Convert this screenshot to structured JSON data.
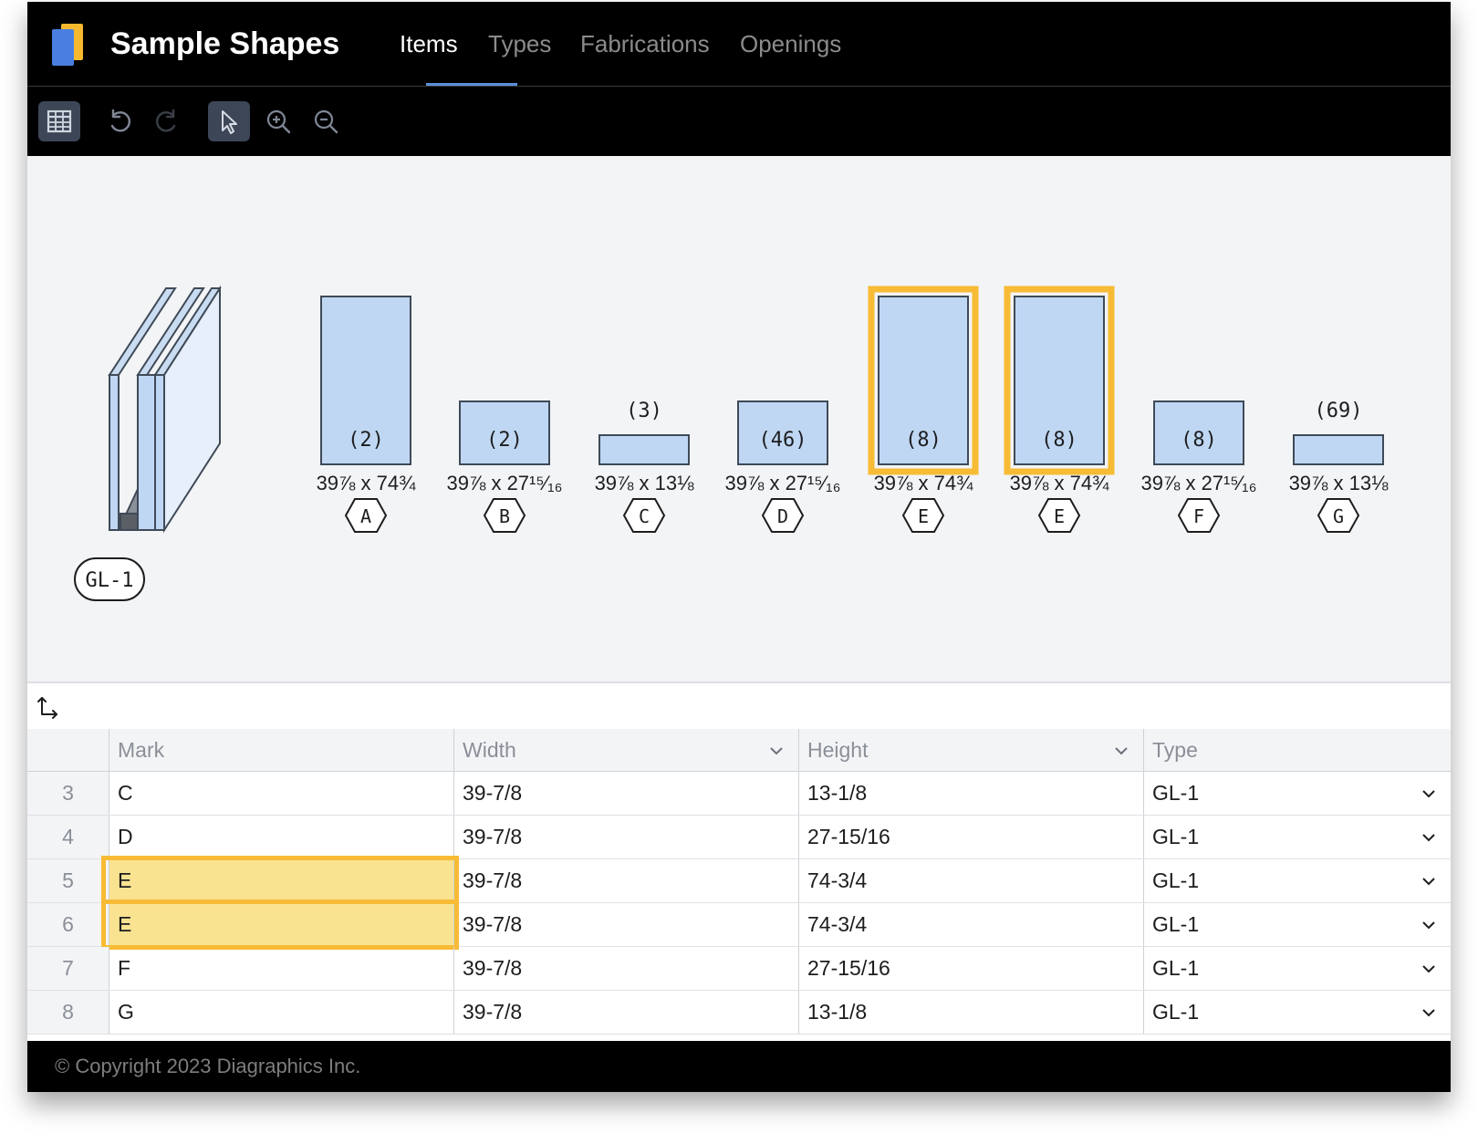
{
  "app": {
    "title": "Sample Shapes"
  },
  "nav": {
    "tabs": [
      {
        "label": "Items",
        "active": true
      },
      {
        "label": "Types",
        "active": false
      },
      {
        "label": "Fabrications",
        "active": false
      },
      {
        "label": "Openings",
        "active": false
      }
    ]
  },
  "toolbar": {
    "tools": [
      {
        "icon": "table-icon",
        "active": true
      },
      {
        "icon": "undo-icon",
        "active": false
      },
      {
        "icon": "redo-icon",
        "active": false,
        "disabled": true
      },
      {
        "icon": "pointer-icon",
        "active": true
      },
      {
        "icon": "zoom-in-icon",
        "active": false
      },
      {
        "icon": "zoom-out-icon",
        "active": false
      }
    ]
  },
  "canvas": {
    "type_tag": "GL-1",
    "items": [
      {
        "count": "(2)",
        "size": "39⅞ x 74¾",
        "mark": "A",
        "highlighted": false
      },
      {
        "count": "(2)",
        "size": "39⅞ x 27¹⁵⁄₁₆",
        "mark": "B",
        "highlighted": false
      },
      {
        "count": "(3)",
        "size": "39⅞ x 13⅛",
        "mark": "C",
        "highlighted": false
      },
      {
        "count": "(46)",
        "size": "39⅞ x 27¹⁵⁄₁₆",
        "mark": "D",
        "highlighted": false
      },
      {
        "count": "(8)",
        "size": "39⅞ x 74¾",
        "mark": "E",
        "highlighted": true
      },
      {
        "count": "(8)",
        "size": "39⅞ x 74¾",
        "mark": "E",
        "highlighted": true
      },
      {
        "count": "(8)",
        "size": "39⅞ x 27¹⁵⁄₁₆",
        "mark": "F",
        "highlighted": false
      },
      {
        "count": "(69)",
        "size": "39⅞ x 13⅛",
        "mark": "G",
        "highlighted": false
      }
    ],
    "colors": {
      "panel_fill": "#bfd7f3",
      "panel_stroke": "#3f4a57",
      "highlight": "#f7bb35"
    }
  },
  "table": {
    "columns": {
      "mark": "Mark",
      "width": "Width",
      "height": "Height",
      "type": "Type"
    },
    "rows": [
      {
        "index": "3",
        "mark": "C",
        "width": "39-7/8",
        "height": "13-1/8",
        "type": "GL-1",
        "selected": false
      },
      {
        "index": "4",
        "mark": "D",
        "width": "39-7/8",
        "height": "27-15/16",
        "type": "GL-1",
        "selected": false
      },
      {
        "index": "5",
        "mark": "E",
        "width": "39-7/8",
        "height": "74-3/4",
        "type": "GL-1",
        "selected": true
      },
      {
        "index": "6",
        "mark": "E",
        "width": "39-7/8",
        "height": "74-3/4",
        "type": "GL-1",
        "selected": true
      },
      {
        "index": "7",
        "mark": "F",
        "width": "39-7/8",
        "height": "27-15/16",
        "type": "GL-1",
        "selected": false
      },
      {
        "index": "8",
        "mark": "G",
        "width": "39-7/8",
        "height": "13-1/8",
        "type": "GL-1",
        "selected": false
      }
    ]
  },
  "footer": {
    "copyright": "© Copyright 2023 Diagraphics Inc."
  }
}
